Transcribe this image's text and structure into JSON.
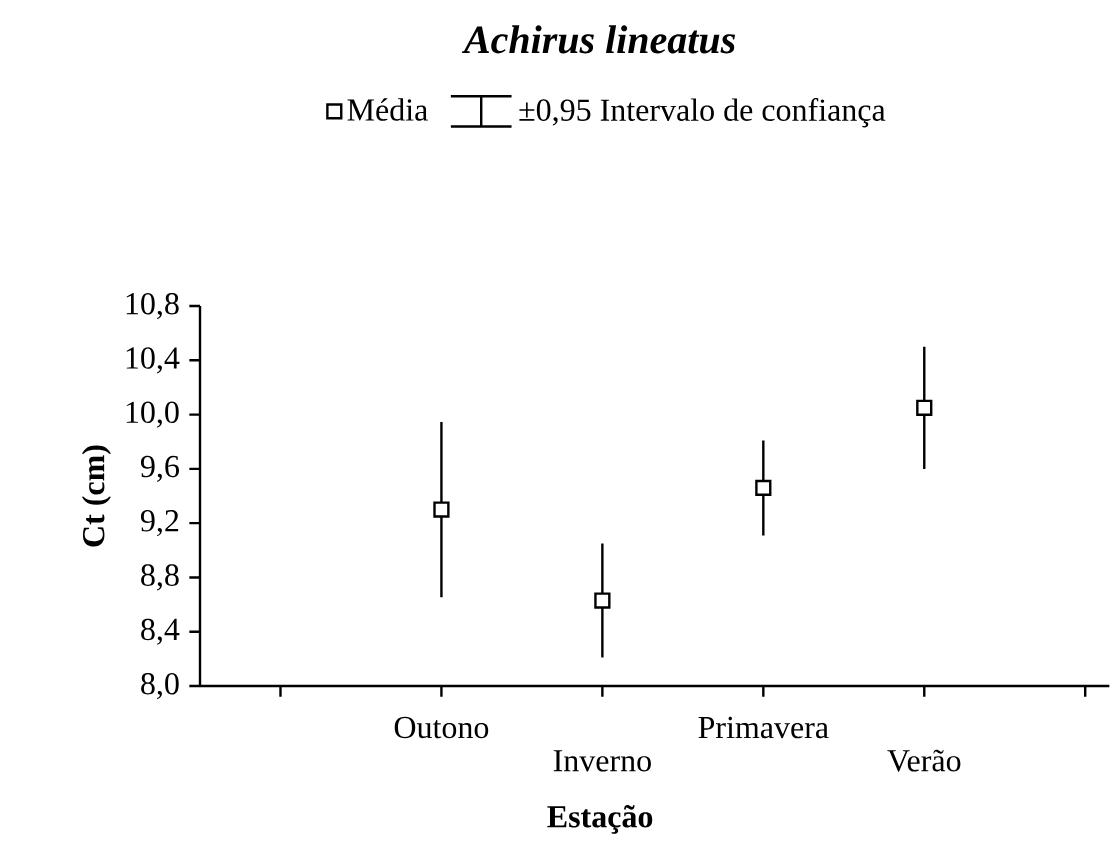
{
  "chart_data": {
    "type": "scatter",
    "title": "Achirus lineatus",
    "xlabel": "Estação",
    "ylabel": "Ct (cm)",
    "categories": [
      "Outono",
      "Inverno",
      "Primavera",
      "Verão"
    ],
    "series": [
      {
        "name": "Média",
        "color": "#000000",
        "values": [
          9.3,
          8.63,
          9.46,
          10.05
        ],
        "errors": [
          0.645,
          0.42,
          0.35,
          0.45
        ]
      }
    ],
    "annotations": [
      "±0,95 Intervalo de confiança"
    ],
    "marker": "square",
    "legend": "top",
    "grid": false,
    "ylim": [
      8.0,
      10.8
    ],
    "yticks": [
      {
        "value": 8.0,
        "label": "8,0"
      },
      {
        "value": 8.4,
        "label": "8,4"
      },
      {
        "value": 8.8,
        "label": "8,8"
      },
      {
        "value": 9.2,
        "label": "9,2"
      },
      {
        "value": 9.6,
        "label": "9,6"
      },
      {
        "value": 10.0,
        "label": "10,0"
      },
      {
        "value": 10.4,
        "label": "10,4"
      },
      {
        "value": 10.8,
        "label": "10,8"
      }
    ]
  }
}
